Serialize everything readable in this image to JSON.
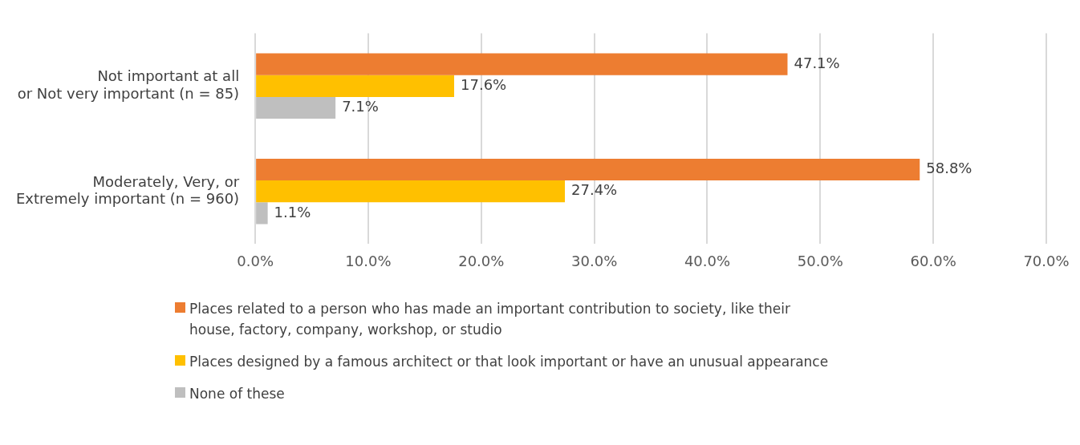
{
  "chart_data": {
    "type": "bar",
    "orientation": "horizontal",
    "categories": [
      "Not important at all\nor Not very important (n = 85)",
      "Moderately, Very, or\nExtremely important (n = 960)"
    ],
    "series": [
      {
        "name": "Places related to a person who has made an important contribution to society, like their house, factory, company, workshop, or studio",
        "color": "#ed7d31",
        "values": [
          47.1,
          58.8
        ],
        "value_labels": [
          "47.1%",
          "58.8%"
        ]
      },
      {
        "name": "Places designed by a famous architect or that look important or have an unusual appearance",
        "color": "#ffc000",
        "values": [
          17.6,
          27.4
        ],
        "value_labels": [
          "17.6%",
          "27.4%"
        ]
      },
      {
        "name": "None of these",
        "color": "#bfbfbf",
        "values": [
          7.1,
          1.1
        ],
        "value_labels": [
          "7.1%",
          "1.1%"
        ]
      }
    ],
    "xlim": [
      0,
      70
    ],
    "xticks": [
      {
        "value": 0,
        "label": "0.0%"
      },
      {
        "value": 10,
        "label": "10.0%"
      },
      {
        "value": 20,
        "label": "20.0%"
      },
      {
        "value": 30,
        "label": "30.0%"
      },
      {
        "value": 40,
        "label": "40.0%"
      },
      {
        "value": 50,
        "label": "50.0%"
      },
      {
        "value": 60,
        "label": "60.0%"
      },
      {
        "value": 70,
        "label": "70.0%"
      }
    ],
    "grid": "x",
    "legend": "bottom"
  }
}
